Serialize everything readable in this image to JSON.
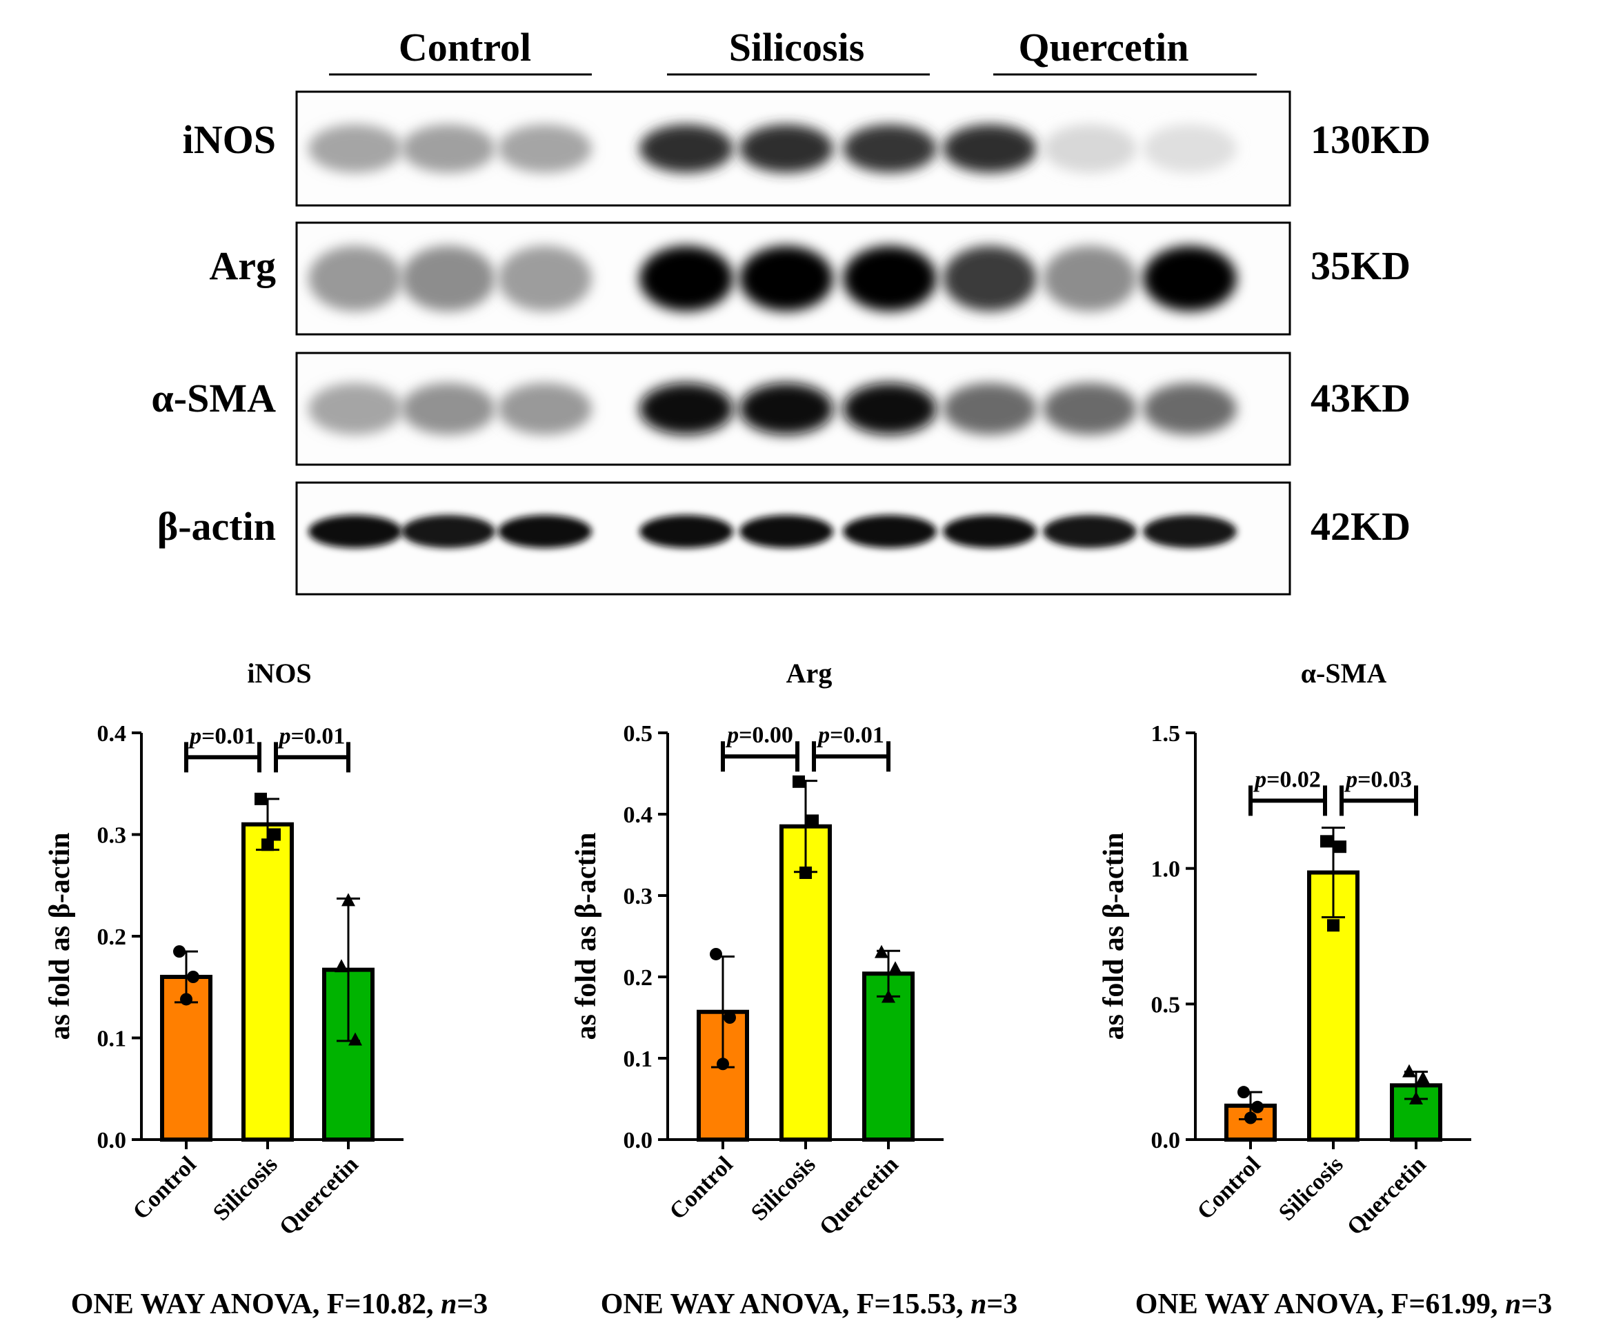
{
  "blot": {
    "groups": [
      "Control",
      "Silicosis",
      "Quercetin"
    ],
    "proteins": [
      {
        "name": "iNOS",
        "size": "130KD",
        "intensity": [
          0.3,
          0.32,
          0.3,
          0.8,
          0.8,
          0.78,
          0.8,
          0.08,
          0.05
        ]
      },
      {
        "name": "Arg",
        "size": "35KD",
        "intensity": [
          0.35,
          0.4,
          0.33,
          1.0,
          1.0,
          1.0,
          0.75,
          0.4,
          1.0
        ]
      },
      {
        "name": "α-SMA",
        "size": "43KD",
        "intensity": [
          0.3,
          0.38,
          0.35,
          0.95,
          0.95,
          0.95,
          0.55,
          0.55,
          0.55
        ]
      },
      {
        "name": "β-actin",
        "size": "42KD",
        "intensity": [
          0.95,
          0.92,
          0.95,
          0.95,
          0.95,
          0.95,
          0.95,
          0.92,
          0.92
        ]
      }
    ]
  },
  "chart_data": [
    {
      "type": "bar",
      "title": "iNOS",
      "ylabel": "as fold as β-actin",
      "categories": [
        "Control",
        "Silicosis",
        "Quercetin"
      ],
      "values": [
        0.16,
        0.31,
        0.167
      ],
      "sd": [
        0.025,
        0.025,
        0.07
      ],
      "points": [
        [
          0.185,
          0.16,
          0.138
        ],
        [
          0.335,
          0.3,
          0.29
        ],
        [
          0.17,
          0.098,
          0.235
        ]
      ],
      "ylim": [
        0,
        0.4
      ],
      "yticks": [
        "0.0",
        "0.1",
        "0.2",
        "0.3",
        "0.4"
      ],
      "comparisons": [
        {
          "label": "p=0.01",
          "p": "p",
          "value": "=0.01",
          "level": 0.376
        },
        {
          "label": "p=0.01",
          "p": "p",
          "value": "=0.01",
          "level": 0.376
        }
      ],
      "anova": {
        "prefix": "ONE WAY ANOVA, F=10.82, ",
        "n": "n",
        "suffix": "=3"
      }
    },
    {
      "type": "bar",
      "title": "Arg",
      "ylabel": "as fold as β-actin",
      "categories": [
        "Control",
        "Silicosis",
        "Quercetin"
      ],
      "values": [
        0.157,
        0.385,
        0.204
      ],
      "sd": [
        0.068,
        0.056,
        0.028
      ],
      "points": [
        [
          0.228,
          0.15,
          0.093
        ],
        [
          0.44,
          0.392,
          0.328
        ],
        [
          0.23,
          0.21,
          0.175
        ]
      ],
      "ylim": [
        0,
        0.5
      ],
      "yticks": [
        "0.0",
        "0.1",
        "0.2",
        "0.3",
        "0.4",
        "0.5"
      ],
      "comparisons": [
        {
          "label": "p=0.00",
          "p": "p",
          "value": "=0.00",
          "level": 0.471
        },
        {
          "label": "p=0.01",
          "p": "p",
          "value": "=0.01",
          "level": 0.471
        }
      ],
      "anova": {
        "prefix": "ONE WAY ANOVA, F=15.53, ",
        "n": "n",
        "suffix": "=3"
      }
    },
    {
      "type": "bar",
      "title": "α-SMA",
      "ylabel": "as fold as β-actin",
      "categories": [
        "Control",
        "Silicosis",
        "Quercetin"
      ],
      "values": [
        0.125,
        0.985,
        0.2
      ],
      "sd": [
        0.05,
        0.165,
        0.05
      ],
      "points": [
        [
          0.175,
          0.12,
          0.08
        ],
        [
          1.1,
          1.08,
          0.79
        ],
        [
          0.25,
          0.225,
          0.15
        ]
      ],
      "ylim": [
        0,
        1.5
      ],
      "yticks": [
        "0.0",
        "0.5",
        "1.0",
        "1.5"
      ],
      "comparisons": [
        {
          "label": "p=0.02",
          "p": "p",
          "value": "=0.02",
          "level": 1.25
        },
        {
          "label": "p=0.03",
          "p": "p",
          "value": "=0.03",
          "level": 1.25
        }
      ],
      "anova": {
        "prefix": "ONE WAY ANOVA, F=61.99, ",
        "n": "n",
        "suffix": "=3"
      }
    }
  ],
  "colors": {
    "control": "#ff7f00",
    "silicosis": "#ffff00",
    "quercetin": "#00b300",
    "ink": "#000000"
  },
  "markers": [
    "circle-marker",
    "square-marker",
    "triangle-marker"
  ]
}
